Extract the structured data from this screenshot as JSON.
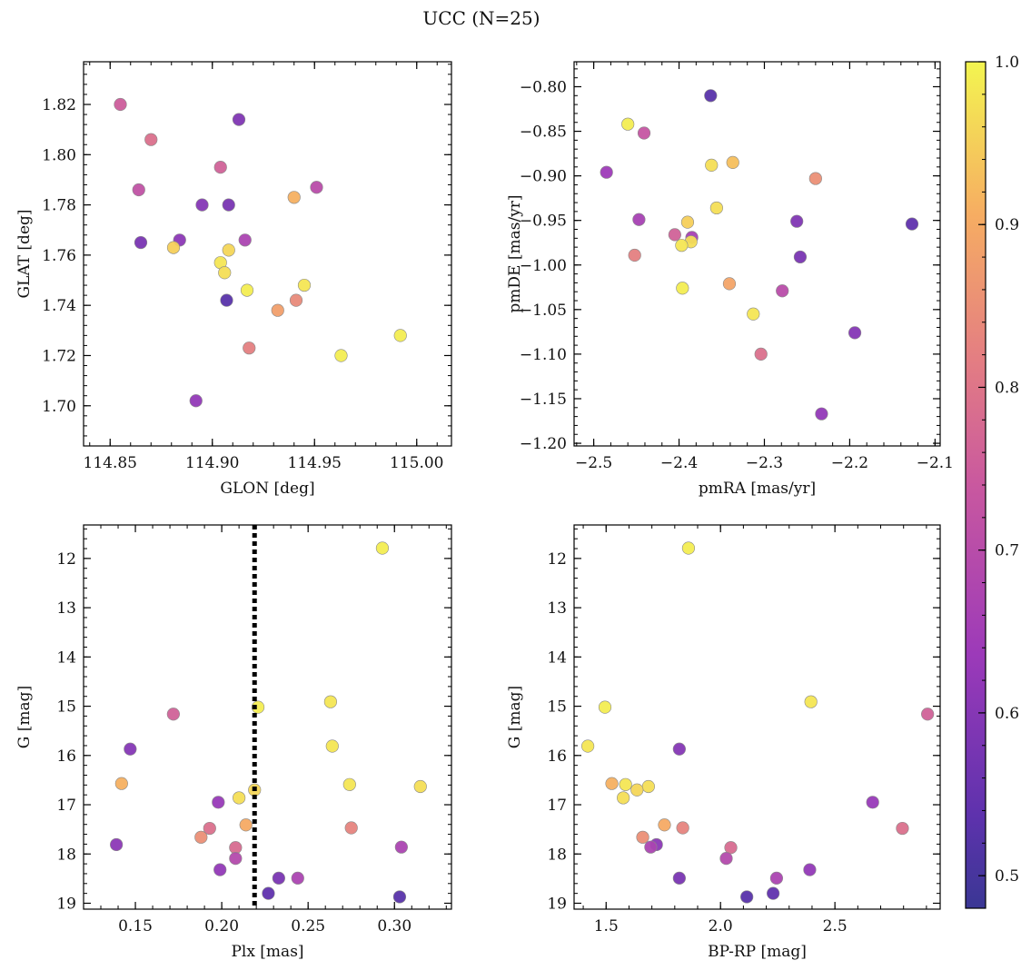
{
  "figure": {
    "title": "UCC (N=25)"
  },
  "colorbar": {
    "min": 0.48,
    "max": 1.0,
    "ticks": [
      0.5,
      0.6,
      0.7,
      0.8,
      0.9,
      1.0
    ],
    "tick_labels": [
      "0.5",
      "0.6",
      "0.7",
      "0.8",
      "0.9",
      "1.0"
    ],
    "colormap": "plasma"
  },
  "chart_data": [
    {
      "type": "scatter",
      "xlabel": "GLON [deg]",
      "ylabel": "GLAT [deg]",
      "xlim": [
        114.837,
        115.017
      ],
      "ylim": [
        1.684,
        1.837
      ],
      "invert_y": false,
      "x_ticks": [
        114.85,
        114.9,
        114.95,
        115.0
      ],
      "x_tick_labels": [
        "114.85",
        "114.90",
        "114.95",
        "115.00"
      ],
      "y_ticks": [
        1.7,
        1.72,
        1.74,
        1.76,
        1.78,
        1.8,
        1.82
      ],
      "y_tick_labels": [
        "1.70",
        "1.72",
        "1.74",
        "1.76",
        "1.78",
        "1.80",
        "1.82"
      ],
      "points": [
        {
          "x": 114.855,
          "y": 1.82,
          "c": 0.75
        },
        {
          "x": 114.87,
          "y": 1.806,
          "c": 0.79
        },
        {
          "x": 114.913,
          "y": 1.814,
          "c": 0.59
        },
        {
          "x": 114.904,
          "y": 1.795,
          "c": 0.76
        },
        {
          "x": 114.864,
          "y": 1.786,
          "c": 0.72
        },
        {
          "x": 114.951,
          "y": 1.787,
          "c": 0.7
        },
        {
          "x": 114.895,
          "y": 1.78,
          "c": 0.6
        },
        {
          "x": 114.908,
          "y": 1.78,
          "c": 0.58
        },
        {
          "x": 114.94,
          "y": 1.783,
          "c": 0.91
        },
        {
          "x": 114.865,
          "y": 1.765,
          "c": 0.58
        },
        {
          "x": 114.884,
          "y": 1.766,
          "c": 0.61
        },
        {
          "x": 114.916,
          "y": 1.766,
          "c": 0.67
        },
        {
          "x": 114.881,
          "y": 1.763,
          "c": 0.95
        },
        {
          "x": 114.908,
          "y": 1.762,
          "c": 0.96
        },
        {
          "x": 114.904,
          "y": 1.757,
          "c": 0.98
        },
        {
          "x": 114.906,
          "y": 1.753,
          "c": 0.97
        },
        {
          "x": 114.917,
          "y": 1.746,
          "c": 0.99
        },
        {
          "x": 114.945,
          "y": 1.748,
          "c": 0.98
        },
        {
          "x": 114.907,
          "y": 1.742,
          "c": 0.53
        },
        {
          "x": 114.941,
          "y": 1.742,
          "c": 0.84
        },
        {
          "x": 114.932,
          "y": 1.738,
          "c": 0.88
        },
        {
          "x": 114.918,
          "y": 1.723,
          "c": 0.82
        },
        {
          "x": 114.963,
          "y": 1.72,
          "c": 0.99
        },
        {
          "x": 114.992,
          "y": 1.728,
          "c": 0.99
        },
        {
          "x": 114.892,
          "y": 1.702,
          "c": 0.62
        }
      ]
    },
    {
      "type": "scatter",
      "xlabel": "pmRA [mas/yr]",
      "ylabel": "pmDE [mas/yr]",
      "xlim": [
        -2.523,
        -2.094
      ],
      "ylim": [
        -1.203,
        -0.772
      ],
      "invert_y": false,
      "x_ticks": [
        -2.5,
        -2.4,
        -2.3,
        -2.2,
        -2.1
      ],
      "x_tick_labels": [
        "−2.5",
        "−2.4",
        "−2.3",
        "−2.2",
        "−2.1"
      ],
      "y_ticks": [
        -1.2,
        -1.15,
        -1.1,
        -1.05,
        -1.0,
        -0.95,
        -0.9,
        -0.85,
        -0.8
      ],
      "y_tick_labels": [
        "−1.20",
        "−1.15",
        "−1.10",
        "−1.05",
        "−1.00",
        "−0.95",
        "−0.90",
        "−0.85",
        "−0.80"
      ],
      "points": [
        {
          "x": -2.363,
          "y": -0.81,
          "c": 0.53
        },
        {
          "x": -2.46,
          "y": -0.842,
          "c": 0.99
        },
        {
          "x": -2.441,
          "y": -0.852,
          "c": 0.73
        },
        {
          "x": -2.485,
          "y": -0.896,
          "c": 0.64
        },
        {
          "x": -2.362,
          "y": -0.888,
          "c": 0.97
        },
        {
          "x": -2.337,
          "y": -0.885,
          "c": 0.93
        },
        {
          "x": -2.24,
          "y": -0.903,
          "c": 0.85
        },
        {
          "x": -2.356,
          "y": -0.936,
          "c": 0.97
        },
        {
          "x": -2.447,
          "y": -0.949,
          "c": 0.66
        },
        {
          "x": -2.39,
          "y": -0.952,
          "c": 0.95
        },
        {
          "x": -2.262,
          "y": -0.951,
          "c": 0.59
        },
        {
          "x": -2.127,
          "y": -0.954,
          "c": 0.54
        },
        {
          "x": -2.405,
          "y": -0.966,
          "c": 0.76
        },
        {
          "x": -2.385,
          "y": -0.969,
          "c": 0.66
        },
        {
          "x": -2.386,
          "y": -0.974,
          "c": 0.97
        },
        {
          "x": -2.397,
          "y": -0.978,
          "c": 0.98
        },
        {
          "x": -2.452,
          "y": -0.989,
          "c": 0.82
        },
        {
          "x": -2.258,
          "y": -0.991,
          "c": 0.58
        },
        {
          "x": -2.341,
          "y": -1.021,
          "c": 0.89
        },
        {
          "x": -2.396,
          "y": -1.026,
          "c": 0.99
        },
        {
          "x": -2.279,
          "y": -1.029,
          "c": 0.7
        },
        {
          "x": -2.313,
          "y": -1.055,
          "c": 0.98
        },
        {
          "x": -2.194,
          "y": -1.076,
          "c": 0.6
        },
        {
          "x": -2.304,
          "y": -1.1,
          "c": 0.79
        },
        {
          "x": -2.233,
          "y": -1.167,
          "c": 0.62
        }
      ]
    },
    {
      "type": "scatter",
      "xlabel": "Plx [mas]",
      "ylabel": "G [mag]",
      "xlim": [
        0.12,
        0.333
      ],
      "ylim": [
        11.32,
        19.12
      ],
      "invert_y": true,
      "vline": {
        "x": 0.219,
        "style": "dotted",
        "color": "#000000"
      },
      "x_ticks": [
        0.15,
        0.2,
        0.25,
        0.3
      ],
      "x_tick_labels": [
        "0.15",
        "0.20",
        "0.25",
        "0.30"
      ],
      "y_ticks": [
        12,
        13,
        14,
        15,
        16,
        17,
        18,
        19
      ],
      "y_tick_labels": [
        "12",
        "13",
        "14",
        "15",
        "16",
        "17",
        "18",
        "19"
      ],
      "points": [
        {
          "x": 0.293,
          "y": 11.79,
          "c": 0.99
        },
        {
          "x": 0.221,
          "y": 15.02,
          "c": 0.99
        },
        {
          "x": 0.263,
          "y": 14.91,
          "c": 0.98
        },
        {
          "x": 0.172,
          "y": 15.16,
          "c": 0.76
        },
        {
          "x": 0.147,
          "y": 15.87,
          "c": 0.6
        },
        {
          "x": 0.264,
          "y": 15.81,
          "c": 0.98
        },
        {
          "x": 0.142,
          "y": 16.57,
          "c": 0.91
        },
        {
          "x": 0.274,
          "y": 16.59,
          "c": 0.98
        },
        {
          "x": 0.315,
          "y": 16.63,
          "c": 0.97
        },
        {
          "x": 0.219,
          "y": 16.7,
          "c": 0.96
        },
        {
          "x": 0.21,
          "y": 16.86,
          "c": 0.97
        },
        {
          "x": 0.198,
          "y": 16.95,
          "c": 0.63
        },
        {
          "x": 0.214,
          "y": 17.41,
          "c": 0.9
        },
        {
          "x": 0.193,
          "y": 17.48,
          "c": 0.79
        },
        {
          "x": 0.275,
          "y": 17.47,
          "c": 0.83
        },
        {
          "x": 0.188,
          "y": 17.66,
          "c": 0.85
        },
        {
          "x": 0.139,
          "y": 17.81,
          "c": 0.61
        },
        {
          "x": 0.208,
          "y": 17.87,
          "c": 0.78
        },
        {
          "x": 0.304,
          "y": 17.86,
          "c": 0.67
        },
        {
          "x": 0.208,
          "y": 18.09,
          "c": 0.69
        },
        {
          "x": 0.199,
          "y": 18.32,
          "c": 0.62
        },
        {
          "x": 0.233,
          "y": 18.49,
          "c": 0.58
        },
        {
          "x": 0.244,
          "y": 18.49,
          "c": 0.67
        },
        {
          "x": 0.227,
          "y": 18.8,
          "c": 0.54
        },
        {
          "x": 0.303,
          "y": 18.87,
          "c": 0.53
        }
      ]
    },
    {
      "type": "scatter",
      "xlabel": "BP-RP [mag]",
      "ylabel": "G [mag]",
      "xlim": [
        1.36,
        2.96
      ],
      "ylim": [
        11.32,
        19.12
      ],
      "invert_y": true,
      "x_ticks": [
        1.5,
        2.0,
        2.5
      ],
      "x_tick_labels": [
        "1.5",
        "2.0",
        "2.5"
      ],
      "y_ticks": [
        12,
        13,
        14,
        15,
        16,
        17,
        18,
        19
      ],
      "y_tick_labels": [
        "12",
        "13",
        "14",
        "15",
        "16",
        "17",
        "18",
        "19"
      ],
      "points": [
        {
          "x": 1.86,
          "y": 11.79,
          "c": 0.99
        },
        {
          "x": 1.495,
          "y": 15.02,
          "c": 0.99
        },
        {
          "x": 2.395,
          "y": 14.91,
          "c": 0.98
        },
        {
          "x": 2.905,
          "y": 15.16,
          "c": 0.76
        },
        {
          "x": 1.82,
          "y": 15.87,
          "c": 0.6
        },
        {
          "x": 1.42,
          "y": 15.81,
          "c": 0.98
        },
        {
          "x": 1.525,
          "y": 16.57,
          "c": 0.91
        },
        {
          "x": 1.585,
          "y": 16.59,
          "c": 0.98
        },
        {
          "x": 1.685,
          "y": 16.63,
          "c": 0.97
        },
        {
          "x": 1.635,
          "y": 16.7,
          "c": 0.96
        },
        {
          "x": 1.575,
          "y": 16.86,
          "c": 0.97
        },
        {
          "x": 2.665,
          "y": 16.95,
          "c": 0.63
        },
        {
          "x": 1.755,
          "y": 17.41,
          "c": 0.9
        },
        {
          "x": 2.795,
          "y": 17.48,
          "c": 0.79
        },
        {
          "x": 1.835,
          "y": 17.47,
          "c": 0.83
        },
        {
          "x": 1.66,
          "y": 17.66,
          "c": 0.85
        },
        {
          "x": 1.72,
          "y": 17.81,
          "c": 0.61
        },
        {
          "x": 2.045,
          "y": 17.87,
          "c": 0.78
        },
        {
          "x": 1.695,
          "y": 17.86,
          "c": 0.67
        },
        {
          "x": 2.025,
          "y": 18.09,
          "c": 0.69
        },
        {
          "x": 2.39,
          "y": 18.32,
          "c": 0.62
        },
        {
          "x": 1.82,
          "y": 18.49,
          "c": 0.58
        },
        {
          "x": 2.245,
          "y": 18.49,
          "c": 0.67
        },
        {
          "x": 2.23,
          "y": 18.8,
          "c": 0.54
        },
        {
          "x": 2.115,
          "y": 18.87,
          "c": 0.53
        }
      ]
    }
  ]
}
